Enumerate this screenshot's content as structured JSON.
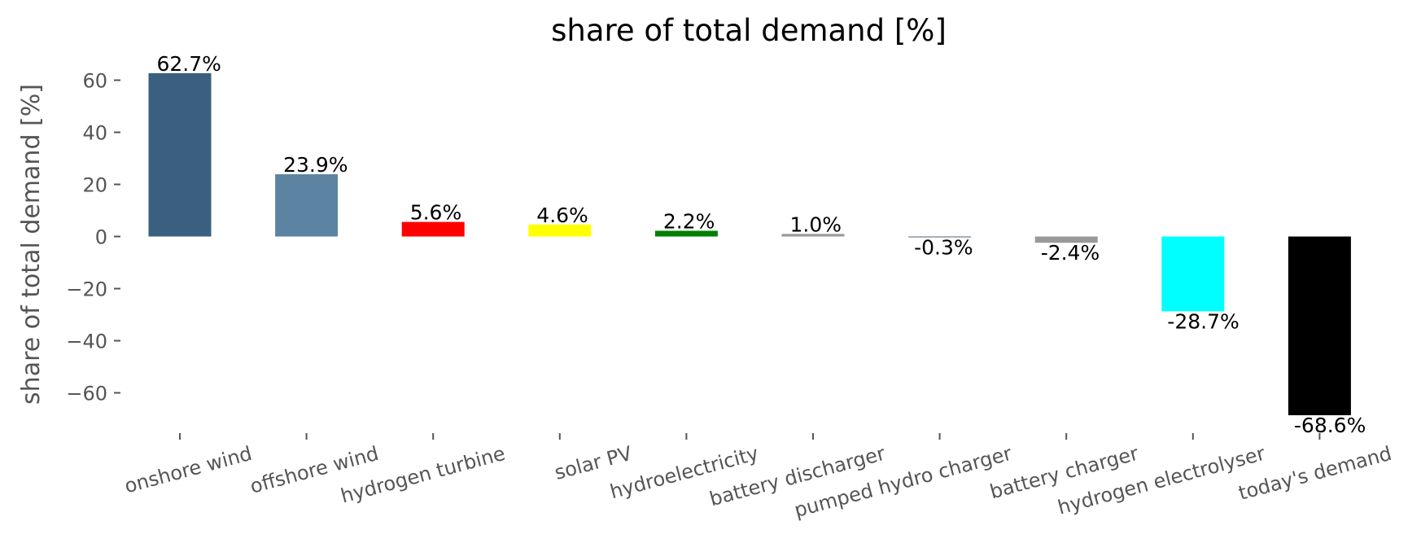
{
  "chart_data": {
    "type": "bar",
    "title": "share of total demand [%]",
    "ylabel": "share of total demand [%]",
    "xlabel": "",
    "ylim": [
      -77,
      70
    ],
    "yticks": [
      60,
      40,
      20,
      0,
      -20,
      -40,
      -60
    ],
    "ytick_labels": [
      "60",
      "40",
      "20",
      "0",
      "−20",
      "−40",
      "−60"
    ],
    "grid": false,
    "categories": [
      "onshore wind",
      "offshore wind",
      "hydrogen turbine",
      "solar PV",
      "hydroelectricity",
      "battery discharger",
      "pumped hydro charger",
      "battery charger",
      "hydrogen electrolyser",
      "today's demand"
    ],
    "values": [
      62.7,
      23.9,
      5.6,
      4.6,
      2.2,
      1.0,
      -0.3,
      -2.4,
      -28.7,
      -68.6
    ],
    "data_labels": [
      "62.7%",
      "23.9%",
      "5.6%",
      "4.6%",
      "2.2%",
      "1.0%",
      "-0.3%",
      "-2.4%",
      "-28.7%",
      "-68.6%"
    ],
    "colors": [
      "#3b607f",
      "#5d83a3",
      "#ff0000",
      "#ffff00",
      "#008000",
      "#999999",
      "#3b607f",
      "#999999",
      "#00ffff",
      "#000000"
    ]
  }
}
